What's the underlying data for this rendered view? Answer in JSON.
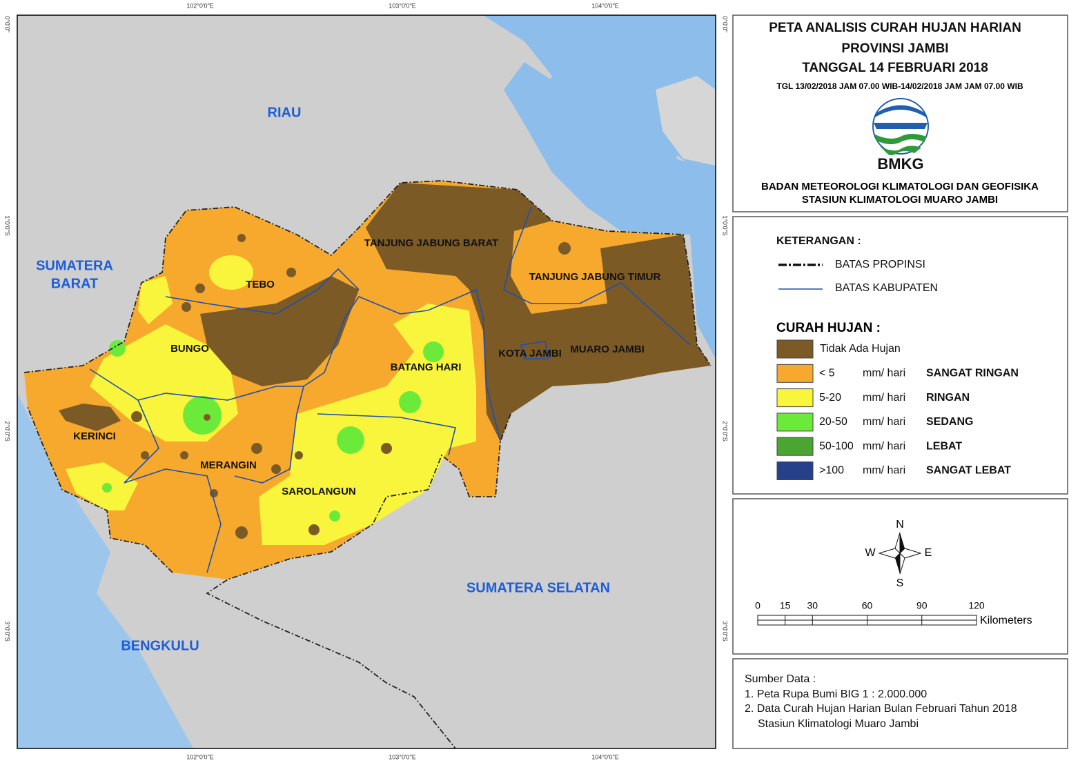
{
  "map": {
    "coords_top": [
      "102°0'0\"E",
      "103°0'0\"E",
      "104°0'0\"E"
    ],
    "coords_bottom": [
      "102°0'0\"E",
      "103°0'0\"E",
      "104°0'0\"E"
    ],
    "coords_left": [
      "0°0'0\"",
      "1°0'0\"S",
      "2°0'0\"S",
      "3°0'0\"S"
    ],
    "coords_right": [
      "0°0'0\"",
      "1°0'0\"S",
      "2°0'0\"S",
      "3°0'0\"S"
    ],
    "regions": [
      "RIAU",
      "SUMATERA",
      "BARAT",
      "SUMATERA SELATAN",
      "BENGKULU"
    ],
    "districts": [
      "TEBO",
      "BUNGO",
      "KERINCI",
      "MERANGIN",
      "SAROLANGUN",
      "BATANG HARI",
      "TANJUNG JABUNG BARAT",
      "TANJUNG JABUNG TIMUR",
      "KOTA JAMBI",
      "MUARO JAMBI"
    ]
  },
  "header": {
    "title_lines": [
      "PETA ANALISIS CURAH HUJAN HARIAN",
      "PROVINSI JAMBI",
      "TANGGAL 14 FEBRUARI 2018"
    ],
    "period": "TGL 13/02/2018 JAM 07.00 WIB-14/02/2018 JAM JAM 07.00 WIB",
    "logo_text": "BMKG",
    "agency_lines": [
      "BADAN METEOROLOGI KLIMATOLOGI DAN GEOFISIKA",
      "STASIUN KLIMATOLOGI MUARO JAMBI"
    ]
  },
  "legend": {
    "heading": "KETERANGAN :",
    "boundaries": [
      "BATAS PROPINSI",
      "BATAS KABUPATEN"
    ],
    "rain_heading": "CURAH HUJAN :",
    "classes": [
      {
        "label": "Tidak Ada Hujan",
        "color": "#7b5a26"
      },
      {
        "range": "< 5",
        "unit": "mm/ hari",
        "category": "SANGAT RINGAN",
        "color": "#f6a92c"
      },
      {
        "range": "5-20",
        "unit": "mm/ hari",
        "category": "RINGAN",
        "color": "#f8f53c"
      },
      {
        "range": "20-50",
        "unit": "mm/ hari",
        "category": "SEDANG",
        "color": "#6cea3a"
      },
      {
        "range": "50-100",
        "unit": "mm/ hari",
        "category": "LEBAT",
        "color": "#4ba533"
      },
      {
        "range": ">100",
        "unit": "mm/ hari",
        "category": "SANGAT LEBAT",
        "color": "#26418a"
      }
    ]
  },
  "compass": {
    "n": "N",
    "s": "S",
    "e": "E",
    "w": "W"
  },
  "scale": {
    "ticks": [
      0,
      15,
      30,
      60,
      90,
      120
    ],
    "unit": "Kilometers"
  },
  "source": {
    "heading": "Sumber Data :",
    "lines": [
      "1. Peta Rupa Bumi BIG 1 : 2.000.000",
      "2. Data Curah Hujan Harian Bulan Februari Tahun 2018",
      "Stasiun Klimatologi Muaro Jambi"
    ]
  }
}
